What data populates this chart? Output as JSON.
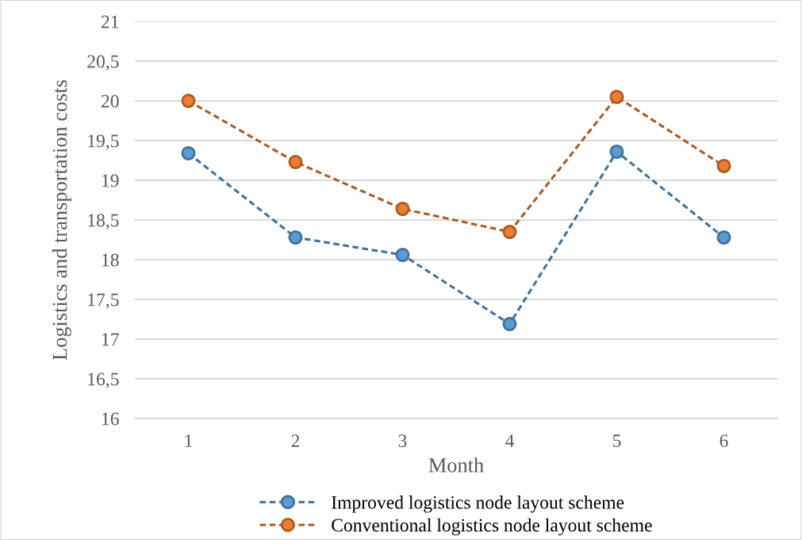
{
  "chart_data": {
    "type": "line",
    "xlabel": "Month",
    "ylabel": "Logistics and transportation costs",
    "categories": [
      "1",
      "2",
      "3",
      "4",
      "5",
      "6"
    ],
    "series": [
      {
        "name": "Improved logistics node layout scheme",
        "color": "#5b9bd5",
        "values": [
          19.34,
          18.28,
          18.06,
          17.19,
          19.36,
          18.28
        ]
      },
      {
        "name": "Conventional logistics node layout scheme",
        "color": "#ed7d31",
        "values": [
          20.0,
          19.23,
          18.64,
          18.35,
          20.05,
          19.18
        ]
      }
    ],
    "ylim": [
      16,
      21
    ],
    "yticks": [
      16,
      {
        "value": 16.5,
        "label": "16,5"
      },
      17,
      {
        "value": 17.5,
        "label": "17,5"
      },
      18,
      {
        "value": 18.5,
        "label": "18,5"
      },
      19,
      {
        "value": 19.5,
        "label": "19,5"
      },
      20,
      {
        "value": 20.5,
        "label": "20,5"
      },
      21
    ],
    "grid": "y",
    "legend": "bottom",
    "marker": "circle",
    "line_style": "dashed"
  }
}
